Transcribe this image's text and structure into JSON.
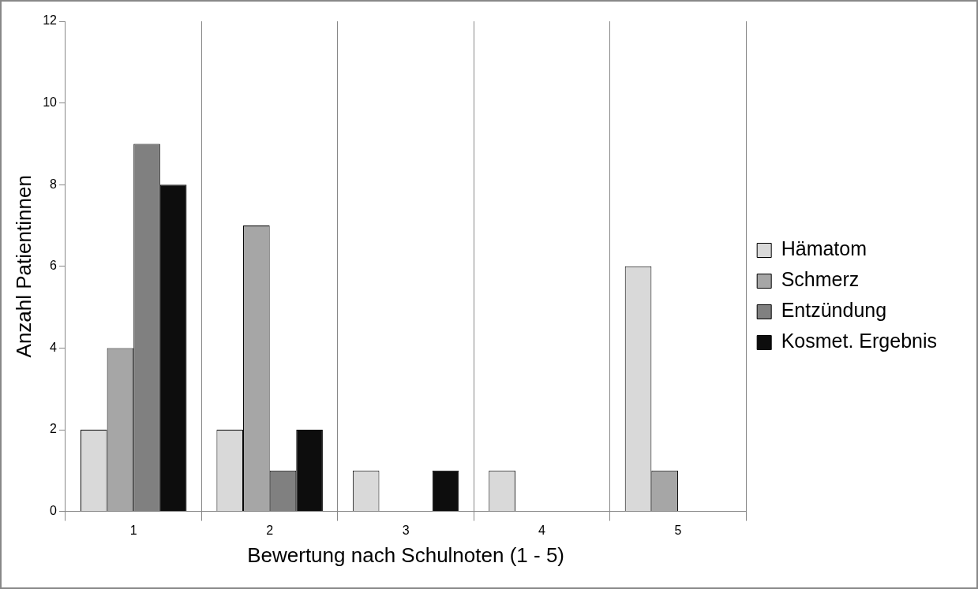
{
  "chart_data": {
    "type": "bar",
    "xlabel": "Bewertung nach Schulnoten (1 - 5)",
    "ylabel": "Anzahl Patientinnen",
    "categories": [
      "1",
      "2",
      "3",
      "4",
      "5"
    ],
    "series": [
      {
        "name": "Hämatom",
        "color": "#d9d9d9",
        "values": [
          2,
          2,
          1,
          1,
          6
        ]
      },
      {
        "name": "Schmerz",
        "color": "#a6a6a6",
        "values": [
          4,
          7,
          0,
          0,
          1
        ]
      },
      {
        "name": "Entzündung",
        "color": "#808080",
        "values": [
          9,
          1,
          0,
          0,
          0
        ]
      },
      {
        "name": "Kosmet. Ergebnis",
        "color": "#0d0d0d",
        "values": [
          8,
          2,
          1,
          0,
          0
        ]
      }
    ],
    "ylim": [
      0,
      12
    ],
    "yticks": [
      0,
      2,
      4,
      6,
      8,
      10,
      12
    ],
    "grid": "x",
    "legend": "right"
  }
}
